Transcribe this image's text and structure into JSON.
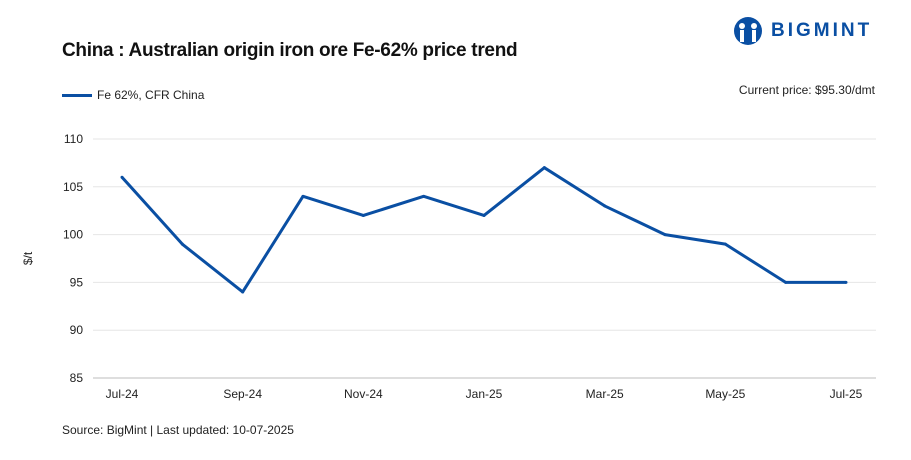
{
  "header": {
    "title": "China : Australian origin iron ore Fe-62% price trend",
    "current_price": "Current price: $95.30/dmt",
    "logo_text": "BIGMINT"
  },
  "footer": {
    "source": "Source: BigMint | Last updated: 10-07-2025"
  },
  "chart_data": {
    "type": "line",
    "title": "China : Australian origin iron ore Fe-62% price trend",
    "xlabel": "",
    "ylabel": "$/t",
    "ylim": [
      85,
      110
    ],
    "yticks": [
      85,
      90,
      95,
      100,
      105,
      110
    ],
    "x": [
      "Jul-24",
      "Aug-24",
      "Sep-24",
      "Oct-24",
      "Nov-24",
      "Dec-24",
      "Jan-25",
      "Feb-25",
      "Mar-25",
      "Apr-25",
      "May-25",
      "Jun-25",
      "Jul-25"
    ],
    "xtick_labels": [
      "Jul-24",
      "Sep-24",
      "Nov-24",
      "Jan-25",
      "Mar-25",
      "May-25",
      "Jul-25"
    ],
    "series": [
      {
        "name": "Fe 62%, CFR China",
        "color": "#0a4fa3",
        "values": [
          106,
          99,
          94,
          104,
          102,
          104,
          102,
          107,
          103,
          100,
          99,
          95,
          95
        ]
      }
    ],
    "grid": true,
    "legend": "top-left"
  }
}
